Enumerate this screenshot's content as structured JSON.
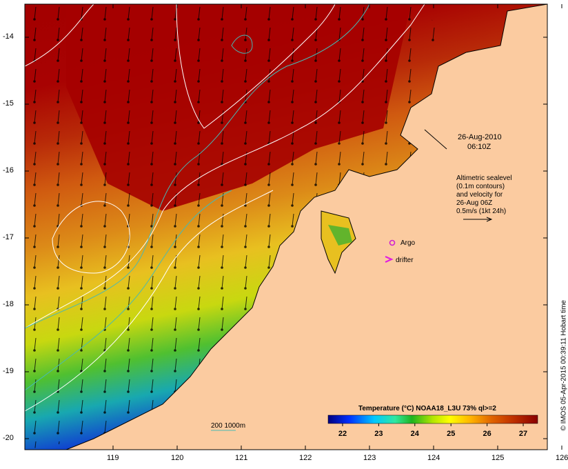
{
  "map": {
    "timestamp_date": "26-Aug-2010",
    "timestamp_time": "06:10Z",
    "altimetry_lines": [
      "Altimetric sealevel",
      "(0.1m contours)",
      "and velocity for",
      "26-Aug 06Z",
      "0.5m/s (1kt 24h)"
    ],
    "legend_argo": "Argo",
    "legend_drifter": "drifter",
    "isobath_label": "200  1000m",
    "credit": "© IMOS 05-Apr-2015 00:39:11 Hobart time",
    "colors": {
      "land": "#fbcba0",
      "isobath": "#47b9b4",
      "argo": "#d020d0",
      "drifter": "#e020e0",
      "contour": "#ffffff"
    }
  },
  "axes": {
    "lon_ticks": [
      "119",
      "120",
      "121",
      "122",
      "123",
      "124",
      "125",
      "126"
    ],
    "lat_ticks": [
      "-14",
      "-15",
      "-16",
      "-17",
      "-18",
      "-19",
      "-20"
    ]
  },
  "colorbar": {
    "title": "Temperature (°C) NOAA18_L3U 73% ql>=2",
    "ticks": [
      "22",
      "23",
      "24",
      "25",
      "26",
      "27"
    ],
    "range": [
      21.6,
      27.4
    ],
    "stops": [
      "#00007f",
      "#0030ff",
      "#00c8ff",
      "#30e8a0",
      "#1fb41f",
      "#b4e600",
      "#ffff00",
      "#ffb400",
      "#e06400",
      "#c03200",
      "#a00000",
      "#8a0000"
    ]
  }
}
